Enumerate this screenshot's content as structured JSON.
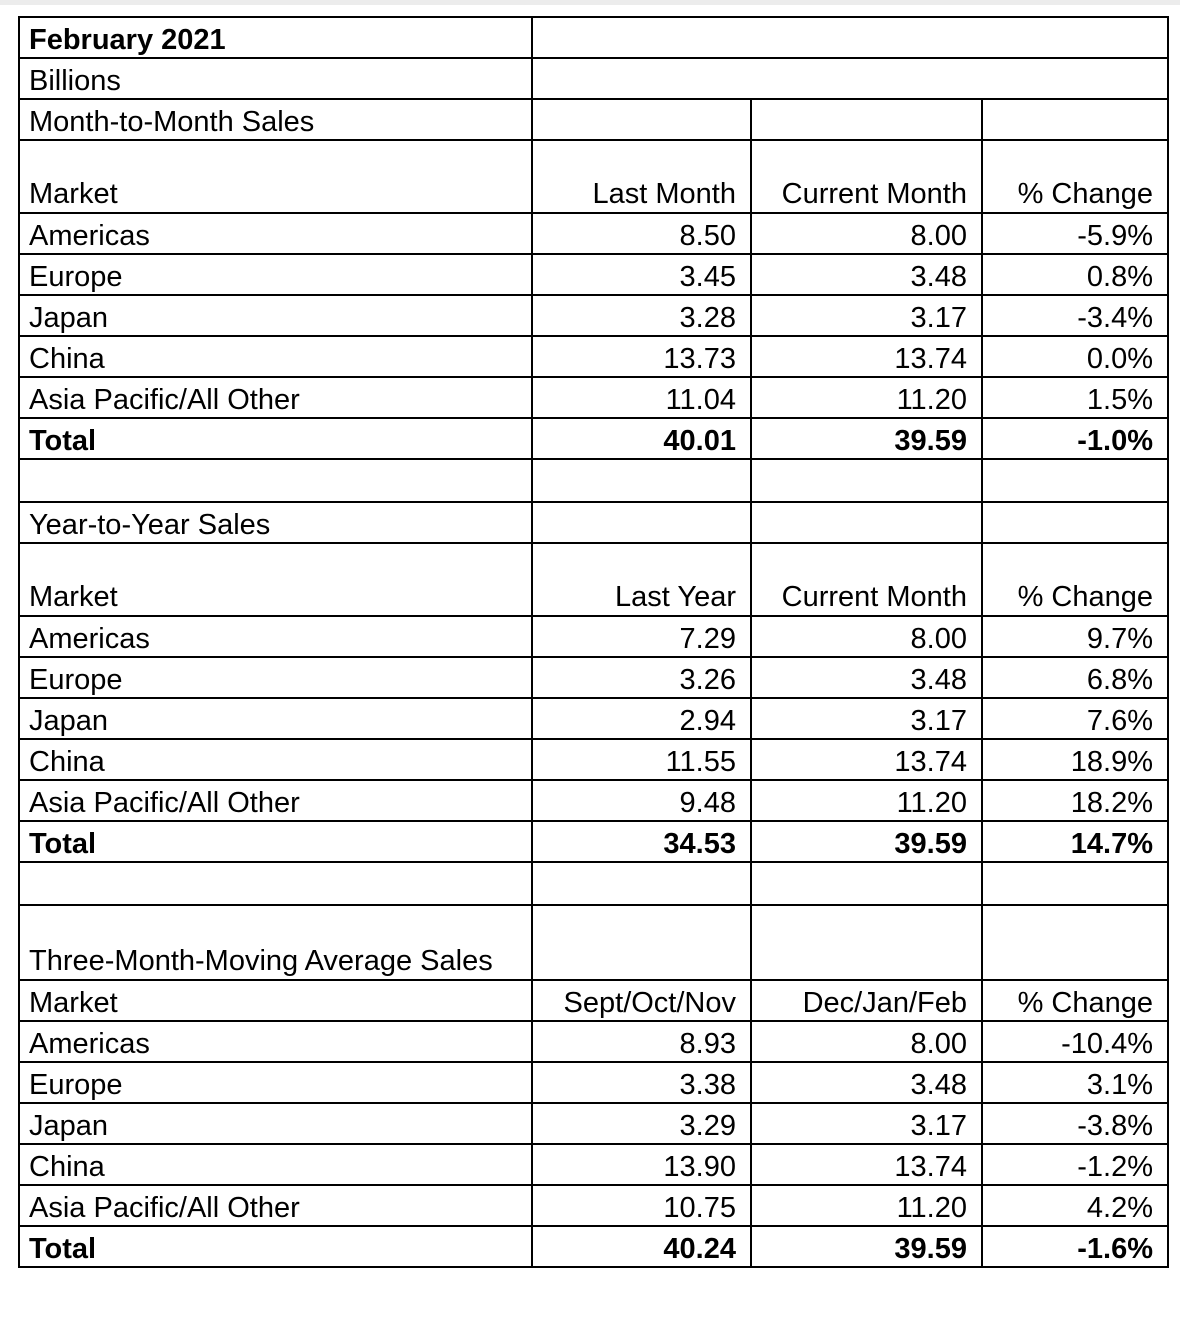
{
  "header": {
    "title": "February 2021",
    "unit": "Billions"
  },
  "sections": [
    {
      "title": "Month-to-Month Sales",
      "columns": [
        "Market",
        "Last Month",
        "Current Month",
        "% Change"
      ],
      "rows": [
        [
          "Americas",
          "8.50",
          "8.00",
          "-5.9%"
        ],
        [
          "Europe",
          "3.45",
          "3.48",
          "0.8%"
        ],
        [
          "Japan",
          "3.28",
          "3.17",
          "-3.4%"
        ],
        [
          "China",
          "13.73",
          "13.74",
          "0.0%"
        ],
        [
          "Asia Pacific/All Other",
          "11.04",
          "11.20",
          "1.5%"
        ]
      ],
      "total": [
        "Total",
        "40.01",
        "39.59",
        "-1.0%"
      ]
    },
    {
      "title": "Year-to-Year Sales",
      "columns": [
        "Market",
        "Last Year",
        "Current Month",
        "% Change"
      ],
      "rows": [
        [
          "Americas",
          "7.29",
          "8.00",
          "9.7%"
        ],
        [
          "Europe",
          "3.26",
          "3.48",
          "6.8%"
        ],
        [
          "Japan",
          "2.94",
          "3.17",
          "7.6%"
        ],
        [
          "China",
          "11.55",
          "13.74",
          "18.9%"
        ],
        [
          "Asia Pacific/All Other",
          "9.48",
          "11.20",
          "18.2%"
        ]
      ],
      "total": [
        "Total",
        "34.53",
        "39.59",
        "14.7%"
      ]
    },
    {
      "title": "Three-Month-Moving Average Sales",
      "columns": [
        "Market",
        "Sept/Oct/Nov",
        "Dec/Jan/Feb",
        "% Change"
      ],
      "rows": [
        [
          "Americas",
          "8.93",
          "8.00",
          "-10.4%"
        ],
        [
          "Europe",
          "3.38",
          "3.48",
          "3.1%"
        ],
        [
          "Japan",
          "3.29",
          "3.17",
          "-3.8%"
        ],
        [
          "China",
          "13.90",
          "13.74",
          "-1.2%"
        ],
        [
          "Asia Pacific/All Other",
          "10.75",
          "11.20",
          "4.2%"
        ]
      ],
      "total": [
        "Total",
        "40.24",
        "39.59",
        "-1.6%"
      ]
    }
  ]
}
